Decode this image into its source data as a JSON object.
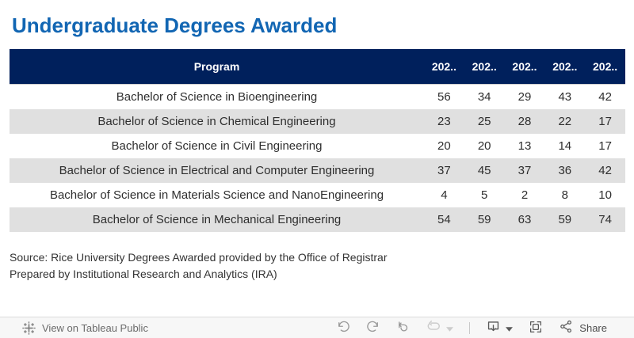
{
  "page_title": "Undergraduate Degrees Awarded",
  "chart_data": {
    "type": "table",
    "title": "Undergraduate Degrees Awarded",
    "columns": [
      "Program",
      "202..",
      "202..",
      "202..",
      "202..",
      "202.."
    ],
    "rows": [
      [
        "Bachelor of Science in Bioengineering",
        56,
        34,
        29,
        43,
        42
      ],
      [
        "Bachelor of Science in Chemical Engineering",
        23,
        25,
        28,
        22,
        17
      ],
      [
        "Bachelor of Science in Civil Engineering",
        20,
        20,
        13,
        14,
        17
      ],
      [
        "Bachelor of Science in Electrical and Computer Engineering",
        37,
        45,
        37,
        36,
        42
      ],
      [
        "Bachelor of Science in Materials Science and NanoEngineering",
        4,
        5,
        2,
        8,
        10
      ],
      [
        "Bachelor of Science in Mechanical Engineering",
        54,
        59,
        63,
        59,
        74
      ]
    ],
    "striped_row_indices": [
      1,
      3,
      5
    ],
    "notes": [
      "Source: Rice University Degrees Awarded provided by the Office of Registrar",
      "Prepared by Institutional Research and Analytics (IRA)"
    ]
  },
  "source": {
    "line1": "Source: Rice University Degrees Awarded provided by the Office of Registrar",
    "line2": "Prepared by Institutional Research and Analytics (IRA)"
  },
  "toolbar": {
    "view_label": "View on Tableau Public",
    "share_label": "Share",
    "icons": [
      "tableau-logo-icon",
      "undo-icon",
      "redo-icon",
      "revert-icon",
      "refresh-icon",
      "refresh-caret-icon",
      "download-icon",
      "download-caret-icon",
      "fullscreen-icon",
      "share-icon"
    ]
  },
  "colors": {
    "title_blue": "#1266b3",
    "header_navy": "#00205c",
    "row_stripe_gray": "#e0e0e0",
    "cell_text": "#2e2e2e",
    "toolbar_bg": "#f7f7f7"
  }
}
